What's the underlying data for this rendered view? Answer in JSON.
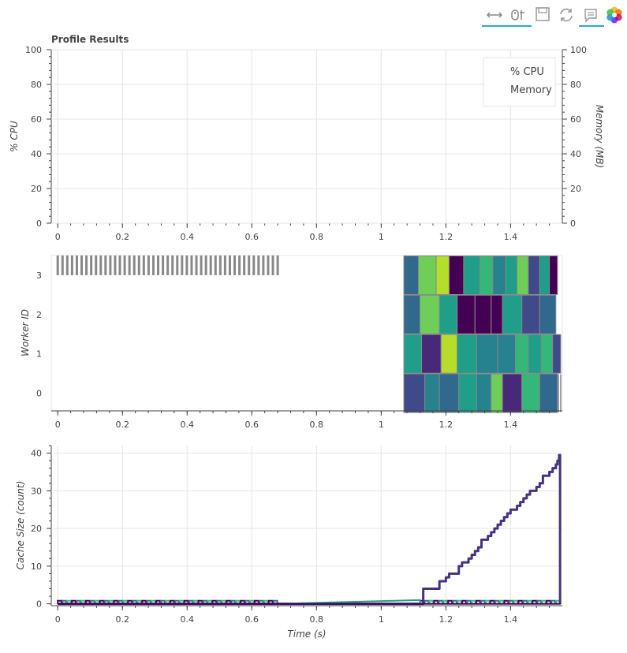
{
  "toolbar": {
    "items": [
      {
        "name": "box-zoom-tool",
        "icon": "horizontal-arrows-icon",
        "active": true
      },
      {
        "name": "wheel-zoom-tool",
        "icon": "wheel-zoom-icon",
        "active": true
      },
      {
        "name": "save-tool",
        "icon": "save-icon",
        "active": false
      },
      {
        "name": "reset-tool",
        "icon": "reset-icon",
        "active": false
      },
      {
        "name": "hover-tool",
        "icon": "tooltip-icon",
        "active": true
      },
      {
        "name": "bokeh-logo",
        "icon": "bokeh-logo-icon",
        "active": false
      }
    ]
  },
  "colors": {
    "grid": "#e5e5e5",
    "axis": "#444444",
    "task_gap": "#888888",
    "cache_main": "#46327e",
    "palette": [
      "#440154",
      "#482878",
      "#3e4a89",
      "#31688e",
      "#26828e",
      "#1f9e89",
      "#35b779",
      "#6ece58",
      "#b5de2b"
    ]
  },
  "chart_data": [
    {
      "type": "line",
      "title": "Profile Results",
      "ylabel": "% CPU",
      "y2label": "Memory (MB)",
      "xlim": [
        -0.02,
        1.56
      ],
      "xticks": [
        "0",
        "0.2",
        "0.4",
        "0.6",
        "0.8",
        "1",
        "1.2",
        "1.4"
      ],
      "ylim": [
        0,
        100
      ],
      "yticks": [
        "0",
        "20",
        "40",
        "60",
        "80",
        "100"
      ],
      "y2lim": [
        0,
        100
      ],
      "y2ticks": [
        "0",
        "20",
        "40",
        "60",
        "80",
        "100"
      ],
      "legend": {
        "position": "top-right",
        "entries": [
          "% CPU",
          "Memory"
        ]
      },
      "series": [],
      "grid": true
    },
    {
      "type": "bar",
      "subtype": "gantt",
      "ylabel": "Worker ID",
      "xlim": [
        -0.02,
        1.56
      ],
      "xticks": [
        "0",
        "0.2",
        "0.4",
        "0.6",
        "0.8",
        "1",
        "1.2",
        "1.4"
      ],
      "ylim": [
        -0.45,
        3.5
      ],
      "yticks": [
        "0",
        "1",
        "2",
        "3"
      ],
      "grid": false,
      "idle_marks": {
        "worker": 3,
        "start": 0.0,
        "end": 0.68,
        "count": 47
      },
      "tasks": [
        {
          "worker": 3,
          "start": 1.07,
          "end": 1.115,
          "color": 3
        },
        {
          "worker": 3,
          "start": 1.115,
          "end": 1.17,
          "color": 7
        },
        {
          "worker": 3,
          "start": 1.17,
          "end": 1.21,
          "color": 8
        },
        {
          "worker": 3,
          "start": 1.21,
          "end": 1.255,
          "color": 0
        },
        {
          "worker": 3,
          "start": 1.255,
          "end": 1.305,
          "color": 5
        },
        {
          "worker": 3,
          "start": 1.305,
          "end": 1.345,
          "color": 6
        },
        {
          "worker": 3,
          "start": 1.345,
          "end": 1.385,
          "color": 4
        },
        {
          "worker": 3,
          "start": 1.385,
          "end": 1.42,
          "color": 5
        },
        {
          "worker": 3,
          "start": 1.42,
          "end": 1.455,
          "color": 7
        },
        {
          "worker": 3,
          "start": 1.455,
          "end": 1.49,
          "color": 2
        },
        {
          "worker": 3,
          "start": 1.49,
          "end": 1.52,
          "color": 5
        },
        {
          "worker": 3,
          "start": 1.52,
          "end": 1.545,
          "color": 0
        },
        {
          "worker": 2,
          "start": 1.07,
          "end": 1.12,
          "color": 3
        },
        {
          "worker": 2,
          "start": 1.12,
          "end": 1.18,
          "color": 7
        },
        {
          "worker": 2,
          "start": 1.18,
          "end": 1.235,
          "color": 5
        },
        {
          "worker": 2,
          "start": 1.235,
          "end": 1.29,
          "color": 0
        },
        {
          "worker": 2,
          "start": 1.29,
          "end": 1.34,
          "color": 0
        },
        {
          "worker": 2,
          "start": 1.34,
          "end": 1.375,
          "color": 0
        },
        {
          "worker": 2,
          "start": 1.375,
          "end": 1.435,
          "color": 5
        },
        {
          "worker": 2,
          "start": 1.435,
          "end": 1.49,
          "color": 2
        },
        {
          "worker": 2,
          "start": 1.49,
          "end": 1.54,
          "color": 3
        },
        {
          "worker": 1,
          "start": 1.07,
          "end": 1.125,
          "color": 5
        },
        {
          "worker": 1,
          "start": 1.125,
          "end": 1.185,
          "color": 1
        },
        {
          "worker": 1,
          "start": 1.185,
          "end": 1.235,
          "color": 8
        },
        {
          "worker": 1,
          "start": 1.235,
          "end": 1.295,
          "color": 5
        },
        {
          "worker": 1,
          "start": 1.295,
          "end": 1.36,
          "color": 4
        },
        {
          "worker": 1,
          "start": 1.36,
          "end": 1.415,
          "color": 4
        },
        {
          "worker": 1,
          "start": 1.415,
          "end": 1.455,
          "color": 6
        },
        {
          "worker": 1,
          "start": 1.455,
          "end": 1.495,
          "color": 5
        },
        {
          "worker": 1,
          "start": 1.495,
          "end": 1.53,
          "color": 6
        },
        {
          "worker": 1,
          "start": 1.53,
          "end": 1.555,
          "color": 2
        },
        {
          "worker": 0,
          "start": 1.07,
          "end": 1.135,
          "color": 2
        },
        {
          "worker": 0,
          "start": 1.135,
          "end": 1.18,
          "color": 4
        },
        {
          "worker": 0,
          "start": 1.18,
          "end": 1.24,
          "color": 3
        },
        {
          "worker": 0,
          "start": 1.24,
          "end": 1.295,
          "color": 5
        },
        {
          "worker": 0,
          "start": 1.295,
          "end": 1.34,
          "color": 4
        },
        {
          "worker": 0,
          "start": 1.34,
          "end": 1.375,
          "color": 7
        },
        {
          "worker": 0,
          "start": 1.375,
          "end": 1.435,
          "color": 1
        },
        {
          "worker": 0,
          "start": 1.435,
          "end": 1.49,
          "color": 6
        },
        {
          "worker": 0,
          "start": 1.49,
          "end": 1.545,
          "color": 3
        }
      ]
    },
    {
      "type": "line",
      "ylabel": "Cache Size (count)",
      "xlabel": "Time (s)",
      "xlim": [
        -0.02,
        1.56
      ],
      "xticks": [
        "0",
        "0.2",
        "0.4",
        "0.6",
        "0.8",
        "1",
        "1.2",
        "1.4"
      ],
      "ylim": [
        -0.5,
        42
      ],
      "yticks": [
        "0",
        "10",
        "20",
        "30",
        "40"
      ],
      "grid": true,
      "series": [
        {
          "color": "#46327e",
          "step": true,
          "width": 3,
          "x": [
            0,
            0.68,
            1.08,
            1.12,
            1.13,
            1.17,
            1.18,
            1.2,
            1.21,
            1.22,
            1.24,
            1.25,
            1.27,
            1.28,
            1.29,
            1.3,
            1.31,
            1.32,
            1.33,
            1.34,
            1.35,
            1.36,
            1.37,
            1.38,
            1.39,
            1.4,
            1.41,
            1.42,
            1.43,
            1.44,
            1.45,
            1.46,
            1.47,
            1.48,
            1.49,
            1.5,
            1.51,
            1.52,
            1.53,
            1.54,
            1.545,
            1.55,
            1.553
          ],
          "y": [
            0,
            0,
            0,
            0,
            4,
            4,
            6,
            7,
            8,
            8,
            10,
            11,
            12,
            13,
            14,
            15,
            17,
            17,
            18,
            19,
            20,
            21,
            22,
            23,
            24,
            25,
            25,
            26,
            27,
            28,
            29,
            30,
            30,
            31,
            32,
            34,
            34,
            35,
            36,
            37,
            38,
            39.5,
            0
          ]
        },
        {
          "color": "#1f9e89",
          "step": false,
          "width": 2,
          "x": [
            0.68,
            1.12,
            1.12,
            1.555
          ],
          "y": [
            0,
            1,
            0,
            0
          ]
        },
        {
          "color": "#440154",
          "step": false,
          "width": 2,
          "x": [
            0,
            0.68,
            1.0,
            1.555
          ],
          "y": [
            0,
            0,
            0,
            0
          ]
        }
      ],
      "noise_marks": {
        "x_ranges": [
          [
            0,
            0.68
          ],
          [
            1.12,
            1.55
          ]
        ],
        "height": 0.8
      }
    }
  ]
}
